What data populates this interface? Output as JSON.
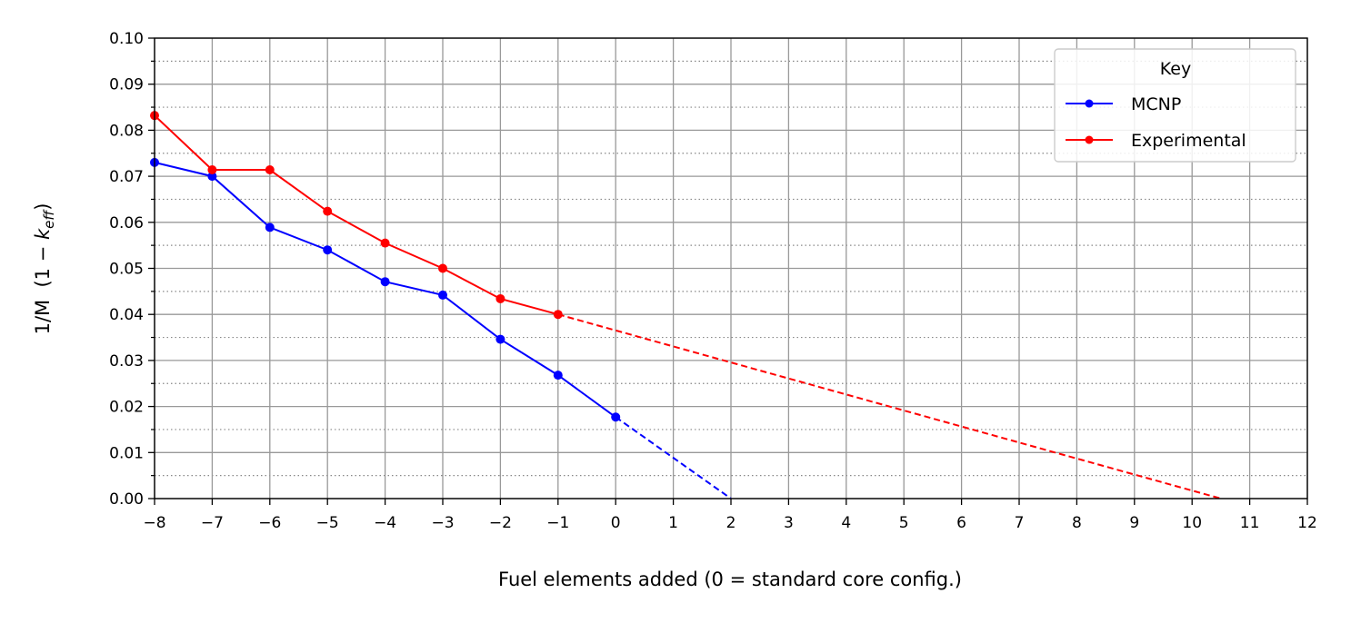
{
  "chart_data": {
    "type": "line",
    "xlabel": "Fuel elements added  (0 = standard core config.)",
    "ylabel": "1/M  (1 − k_eff)",
    "ylabel_main": "1/M  (1 − ",
    "ylabel_k": "k",
    "ylabel_sub": "eff",
    "ylabel_close": ")",
    "xlim": [
      -8,
      12
    ],
    "ylim": [
      0.0,
      0.1
    ],
    "xticks": [
      "−8",
      "−7",
      "−6",
      "−5",
      "−4",
      "−3",
      "−2",
      "−1",
      "0",
      "1",
      "2",
      "3",
      "4",
      "5",
      "6",
      "7",
      "8",
      "9",
      "10",
      "11",
      "12"
    ],
    "yticks": [
      "0.00",
      "0.01",
      "0.02",
      "0.03",
      "0.04",
      "0.05",
      "0.06",
      "0.07",
      "0.08",
      "0.09",
      "0.10"
    ],
    "grid": true,
    "minor_grid_y": "dotted",
    "legend": {
      "title": "Key",
      "placement": "top-right"
    },
    "series": [
      {
        "name": "MCNP",
        "color": "#0000ff",
        "x": [
          -8,
          -7,
          -6,
          -5,
          -4,
          -3,
          -2,
          -1,
          0
        ],
        "y": [
          0.073,
          0.07,
          0.0589,
          0.054,
          0.0471,
          0.0442,
          0.0346,
          0.0268,
          0.0177
        ],
        "extrapolation": {
          "x": [
            0,
            2
          ],
          "y": [
            0.0177,
            0.0
          ]
        }
      },
      {
        "name": "Experimental",
        "color": "#ff0000",
        "x": [
          -8,
          -7,
          -6,
          -5,
          -4,
          -3,
          -2,
          -1
        ],
        "y": [
          0.0832,
          0.0714,
          0.0714,
          0.0624,
          0.0555,
          0.05,
          0.0434,
          0.04
        ],
        "extrapolation": {
          "x": [
            -1,
            10.5
          ],
          "y": [
            0.04,
            0.0
          ]
        }
      }
    ]
  }
}
